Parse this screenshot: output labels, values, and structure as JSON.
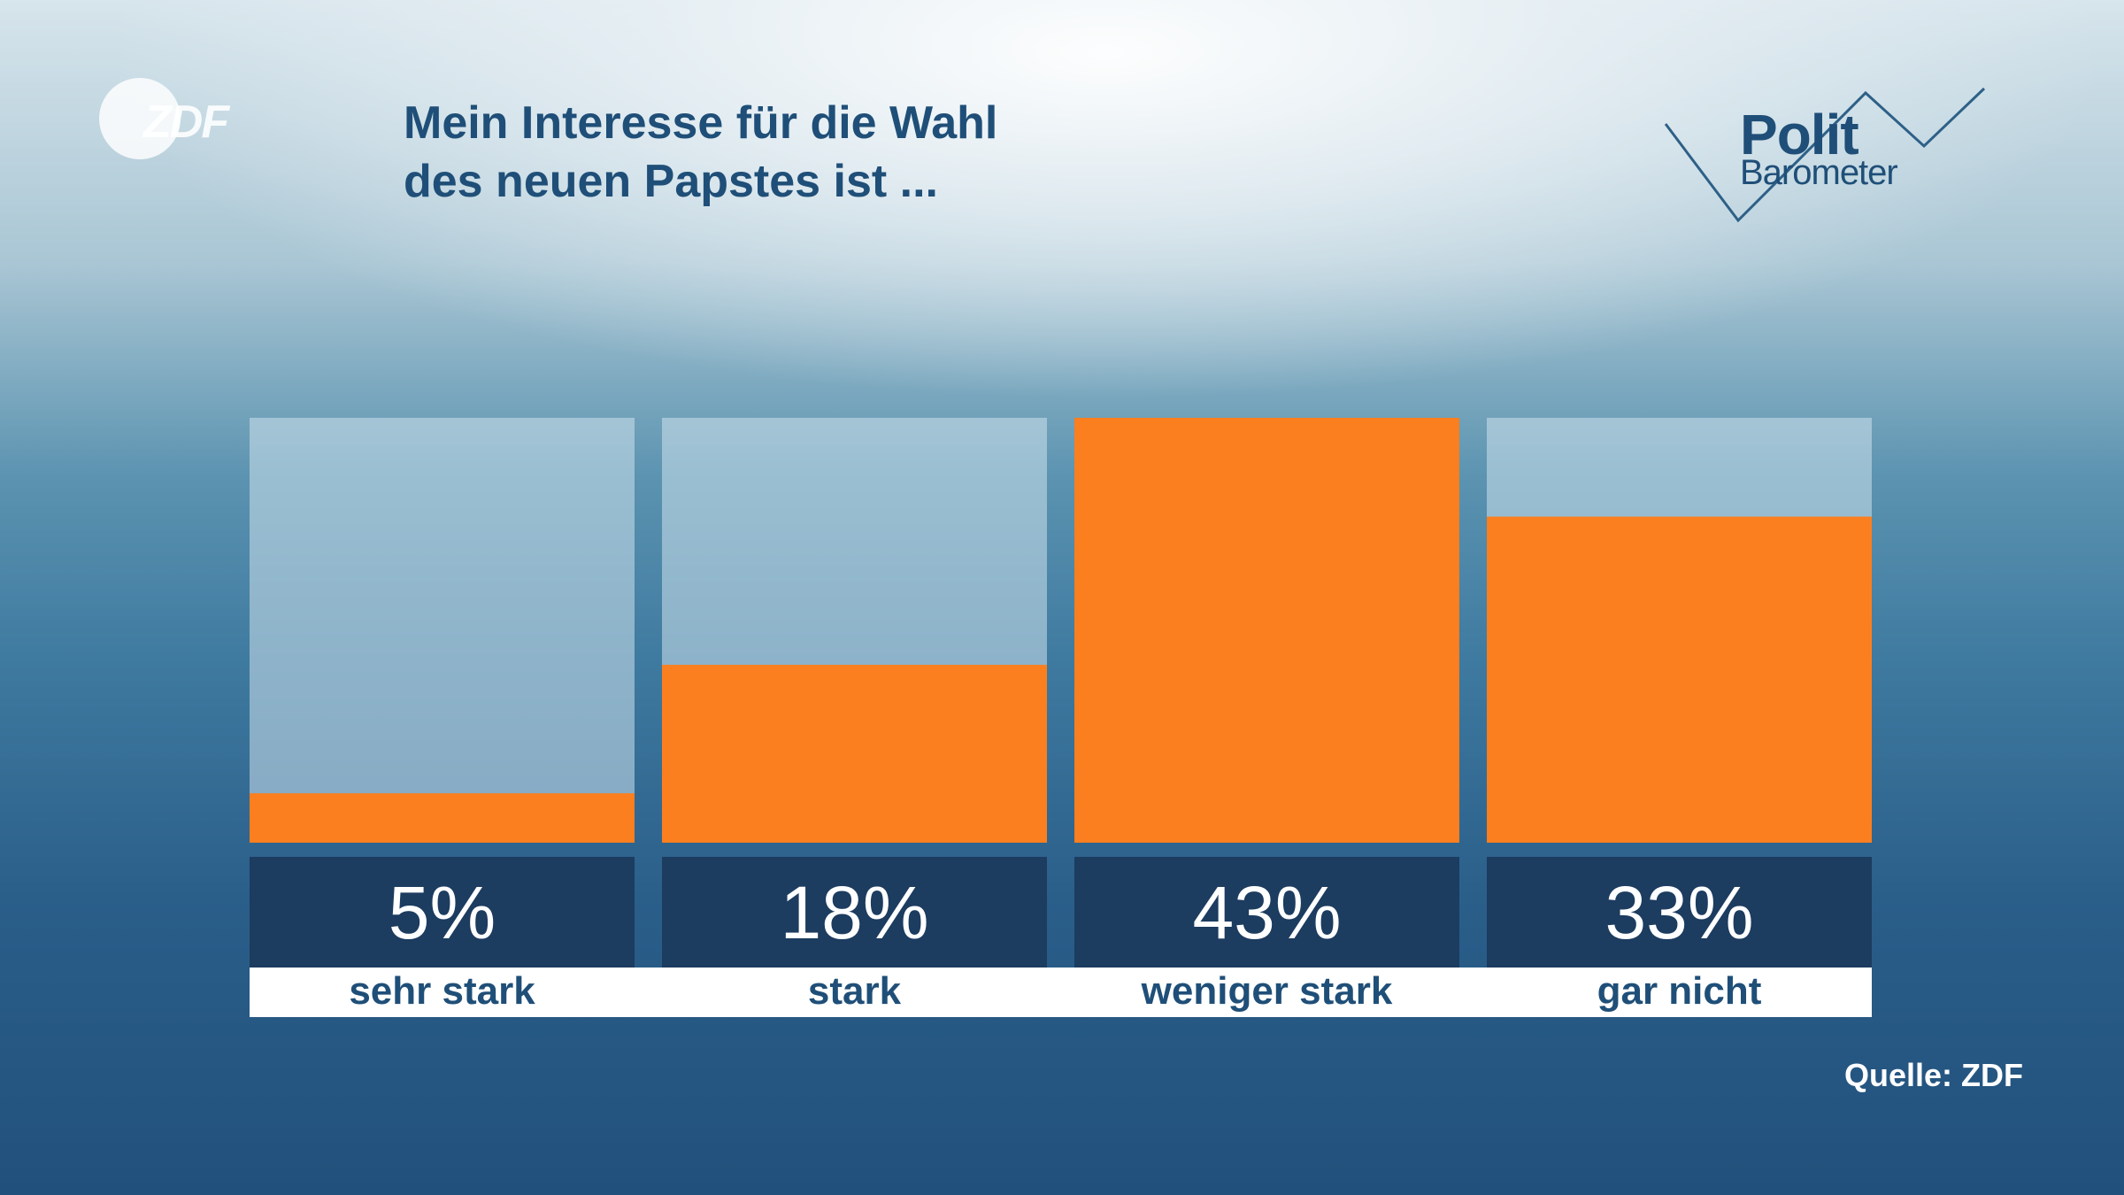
{
  "branding": {
    "broadcaster_logo": "ZDF",
    "program_logo_line1": "Polit",
    "program_logo_line2": "Barometer"
  },
  "colors": {
    "bar_fill": "#fb7f1e",
    "bar_track": "rgba(205,225,236,0.55)",
    "value_box": "#1c3c60",
    "label_box": "#ffffff",
    "title_text": "#1f4f78",
    "label_text": "#1f4f78"
  },
  "chart_data": {
    "type": "bar",
    "title_lines": [
      "Mein Interesse für die Wahl",
      "des neuen Papstes ist ..."
    ],
    "categories": [
      "sehr stark",
      "stark",
      "weniger stark",
      "gar nicht"
    ],
    "values": [
      5,
      18,
      43,
      33
    ],
    "value_labels": [
      "5%",
      "18%",
      "43%",
      "33%"
    ],
    "unit": "%",
    "ylim": [
      0,
      43
    ],
    "grid": false,
    "legend": "none"
  },
  "source": "Quelle: ZDF"
}
